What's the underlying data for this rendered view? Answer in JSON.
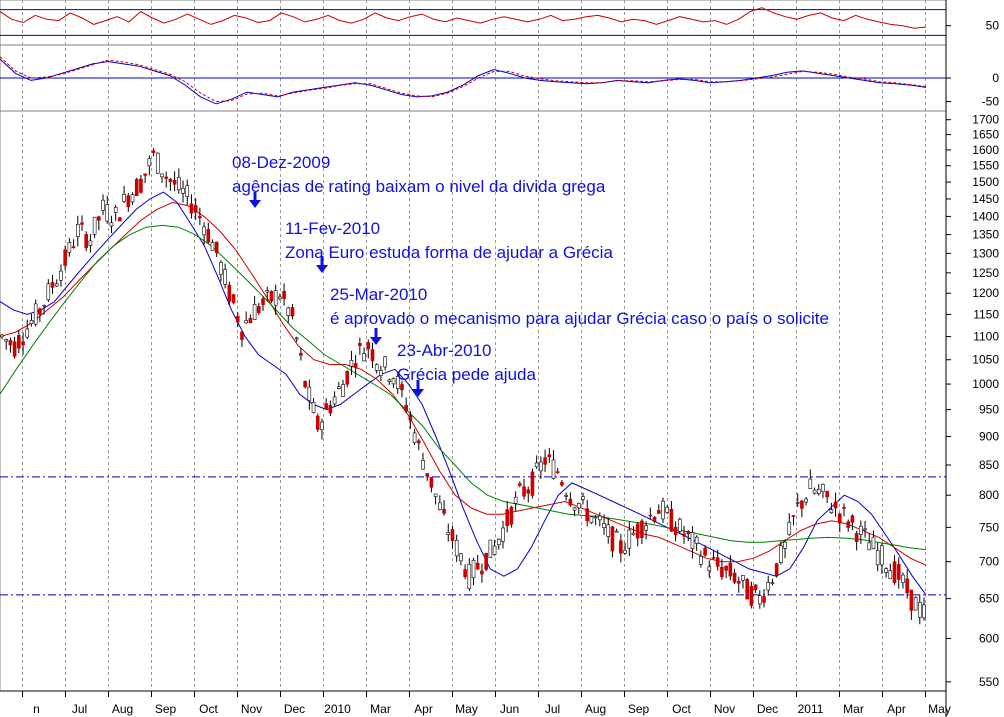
{
  "chart_data": [
    {
      "panel": "oscillator-1",
      "type": "line",
      "y_ticks": [
        50
      ],
      "ylim": [
        20,
        90
      ],
      "reference_lines": [
        75,
        35
      ],
      "series": [
        {
          "color": "#cc0000",
          "values": [
            72,
            60,
            55,
            66,
            60,
            58,
            70,
            62,
            52,
            58,
            64,
            56,
            72,
            62,
            54,
            60,
            68,
            60,
            52,
            58,
            66,
            62,
            55,
            58,
            70,
            64,
            56,
            60,
            66,
            58,
            54,
            60,
            70,
            62,
            58,
            64,
            68,
            60,
            56,
            62,
            58,
            54,
            60,
            64,
            60,
            56,
            60,
            66,
            58,
            60,
            64,
            66,
            62,
            56,
            60,
            58,
            52,
            58,
            64,
            60,
            56,
            58,
            52,
            60,
            72,
            78,
            70,
            64,
            60,
            66,
            70,
            62,
            58,
            66,
            60,
            56,
            52,
            50,
            46,
            48
          ]
        }
      ]
    },
    {
      "panel": "oscillator-2",
      "type": "line",
      "y_ticks": [
        0,
        -50
      ],
      "ylim": [
        -70,
        70
      ],
      "reference_lines": [
        0
      ],
      "series": [
        {
          "color": "#0000cc",
          "values": [
            40,
            10,
            -5,
            0,
            10,
            20,
            30,
            35,
            30,
            25,
            15,
            5,
            -15,
            -40,
            -55,
            -45,
            -30,
            -35,
            -40,
            -30,
            -25,
            -20,
            -15,
            -10,
            -15,
            -25,
            -35,
            -40,
            -38,
            -30,
            -15,
            5,
            18,
            10,
            0,
            -5,
            -8,
            -10,
            -12,
            -10,
            -5,
            -8,
            -10,
            -5,
            -2,
            -5,
            -10,
            -8,
            -5,
            0,
            5,
            12,
            15,
            10,
            5,
            0,
            -5,
            -10,
            -12,
            -15,
            -20
          ]
        },
        {
          "color": "#cc0000",
          "values": [
            45,
            15,
            0,
            2,
            8,
            18,
            28,
            38,
            34,
            28,
            18,
            8,
            -8,
            -32,
            -50,
            -48,
            -34,
            -32,
            -38,
            -32,
            -26,
            -22,
            -16,
            -12,
            -12,
            -22,
            -32,
            -38,
            -40,
            -32,
            -18,
            0,
            14,
            14,
            4,
            -2,
            -6,
            -8,
            -10,
            -10,
            -6,
            -6,
            -8,
            -6,
            -3,
            -3,
            -8,
            -8,
            -6,
            -2,
            2,
            8,
            14,
            12,
            8,
            2,
            -2,
            -8,
            -10,
            -14,
            -18
          ]
        }
      ]
    },
    {
      "panel": "price",
      "type": "candlestick",
      "y_scale": "log",
      "ylim": [
        540,
        1730
      ],
      "y_ticks": [
        550,
        600,
        650,
        700,
        750,
        800,
        850,
        900,
        950,
        1000,
        1050,
        1100,
        1150,
        1200,
        1250,
        1300,
        1350,
        1400,
        1450,
        1500,
        1550,
        1600,
        1650,
        1700
      ],
      "x_ticks": [
        "n",
        "Jul",
        "Aug",
        "Sep",
        "Oct",
        "Nov",
        "Dec",
        "2010",
        "Mar",
        "Apr",
        "May",
        "Jun",
        "Jul",
        "Aug",
        "Sep",
        "Oct",
        "Nov",
        "Dec",
        "2011",
        "Mar",
        "Apr",
        "May"
      ],
      "horizontal_lines": [
        830,
        655
      ],
      "close": [
        1100,
        1080,
        1120,
        1160,
        1220,
        1280,
        1360,
        1340,
        1420,
        1400,
        1460,
        1500,
        1580,
        1520,
        1480,
        1440,
        1380,
        1300,
        1200,
        1120,
        1160,
        1180,
        1200,
        1140,
        1000,
        920,
        960,
        1000,
        1060,
        1080,
        1040,
        1020,
        960,
        880,
        820,
        760,
        720,
        680,
        700,
        720,
        760,
        800,
        820,
        860,
        840,
        800,
        780,
        760,
        740,
        720,
        740,
        760,
        780,
        760,
        740,
        720,
        700,
        690,
        680,
        660,
        650,
        680,
        720,
        780,
        810,
        800,
        780,
        760,
        740,
        720,
        700,
        680,
        650,
        630
      ],
      "moving_averages": [
        {
          "color": "#0000cc",
          "values": [
            1180,
            1160,
            1150,
            1160,
            1180,
            1220,
            1260,
            1300,
            1340,
            1380,
            1420,
            1450,
            1470,
            1440,
            1380,
            1320,
            1240,
            1160,
            1100,
            1060,
            1040,
            1020,
            980,
            960,
            950,
            960,
            980,
            1000,
            1020,
            1030,
            1000,
            960,
            900,
            840,
            780,
            730,
            690,
            680,
            690,
            720,
            760,
            800,
            820,
            810,
            800,
            790,
            780,
            770,
            760,
            750,
            740,
            730,
            720,
            710,
            700,
            690,
            685,
            680,
            690,
            720,
            760,
            780,
            800,
            790,
            770,
            740,
            710,
            680,
            655
          ]
        },
        {
          "color": "#cc0000",
          "values": [
            1100,
            1110,
            1130,
            1160,
            1190,
            1230,
            1270,
            1310,
            1350,
            1390,
            1420,
            1440,
            1430,
            1400,
            1360,
            1310,
            1250,
            1190,
            1130,
            1080,
            1050,
            1040,
            1040,
            1030,
            1010,
            980,
            940,
            890,
            840,
            800,
            780,
            770,
            770,
            775,
            780,
            785,
            790,
            780,
            770,
            760,
            750,
            740,
            735,
            725,
            715,
            705,
            700,
            700,
            705,
            715,
            730,
            745,
            755,
            760,
            755,
            745,
            735,
            720,
            705,
            695
          ]
        },
        {
          "color": "#008000",
          "values": [
            980,
            1030,
            1080,
            1130,
            1180,
            1230,
            1280,
            1320,
            1350,
            1370,
            1375,
            1370,
            1350,
            1320,
            1280,
            1240,
            1200,
            1160,
            1120,
            1090,
            1060,
            1040,
            1020,
            1000,
            980,
            950,
            920,
            880,
            850,
            820,
            800,
            790,
            785,
            780,
            775,
            770,
            768,
            766,
            762,
            758,
            755,
            750,
            745,
            740,
            735,
            730,
            728,
            728,
            730,
            732,
            734,
            735,
            734,
            732,
            728,
            724,
            720,
            717
          ]
        }
      ],
      "annotations": [
        {
          "date": "08-Dez-2009",
          "text": "agências de rating baixam o nivel da divida grega"
        },
        {
          "date": "11-Fev-2010",
          "text": "Zona Euro estuda forma de ajudar a Grécia"
        },
        {
          "date": "25-Mar-2010",
          "text": "é aprovado o mecanismo para ajudar Grécia caso o país o solicite"
        },
        {
          "date": "23-Abr-2010",
          "text": "Grécia pede ajuda"
        }
      ]
    }
  ]
}
